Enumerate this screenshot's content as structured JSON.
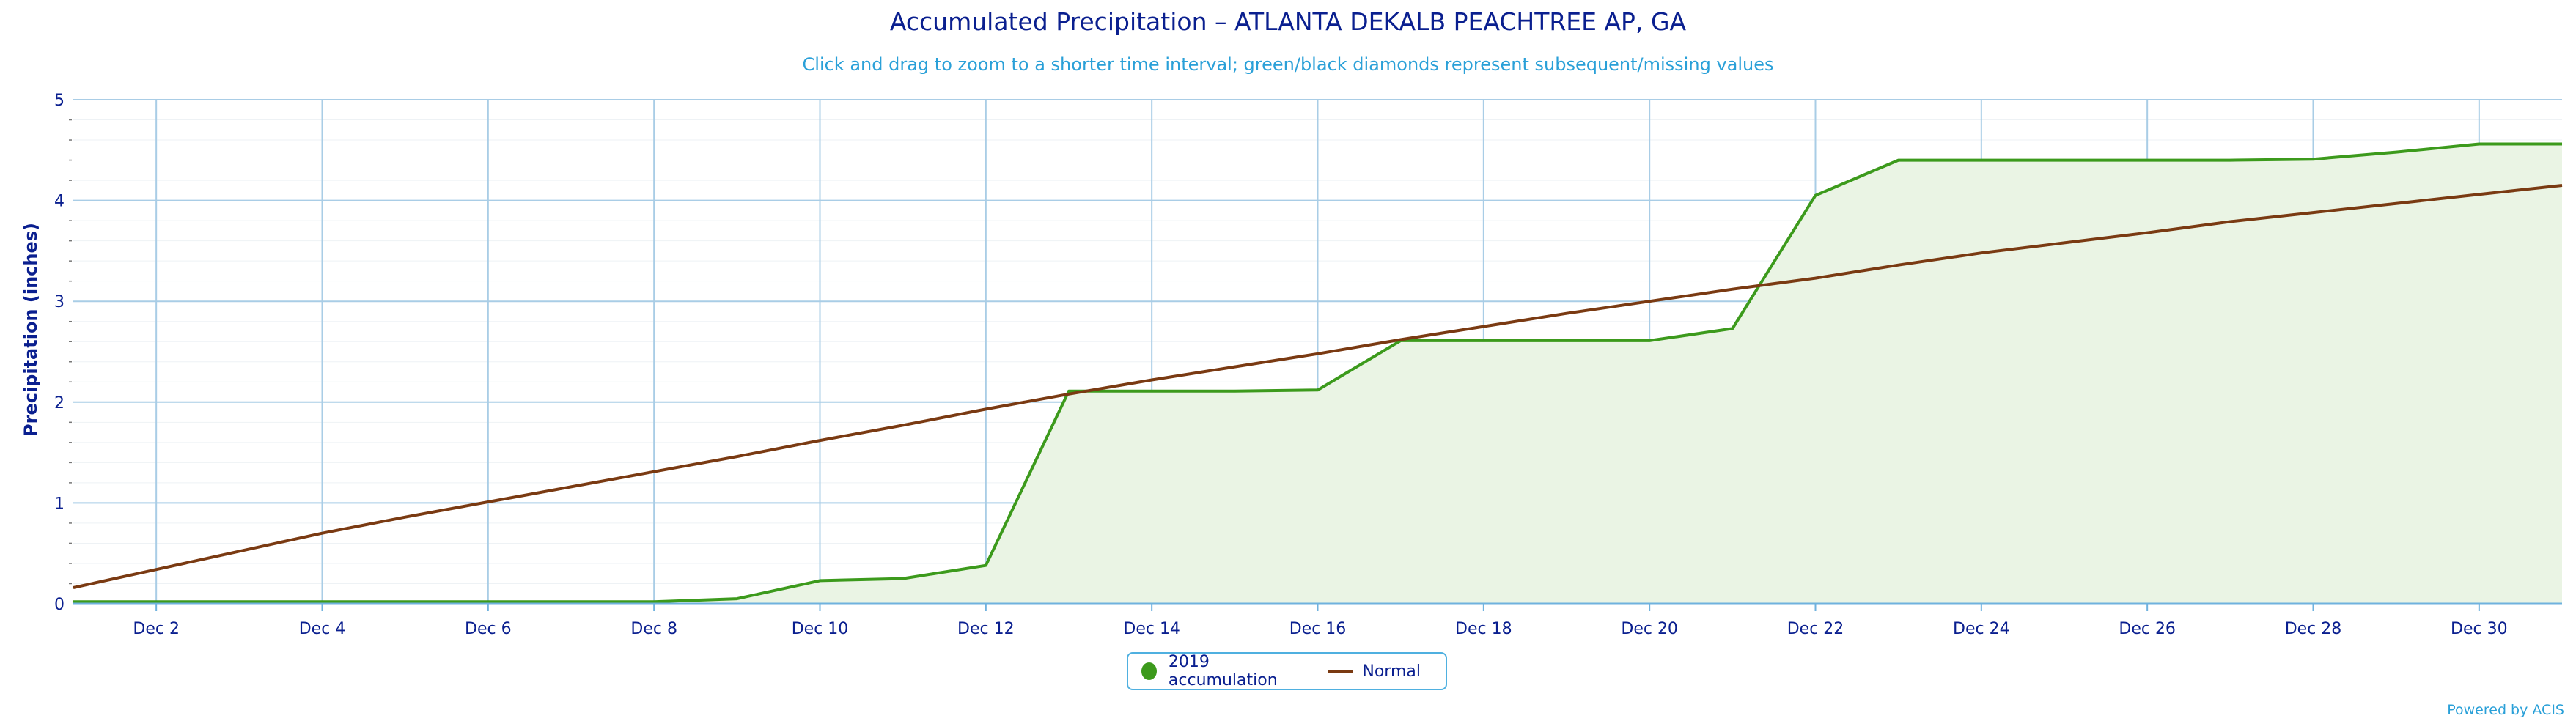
{
  "chart_data": {
    "type": "line",
    "title": "Accumulated Precipitation – ATLANTA DEKALB PEACHTREE AP, GA",
    "subtitle": "Click and drag to zoom to a shorter time interval; green/black diamonds represent subsequent/missing values",
    "ylabel": "Precipitation (inches)",
    "xlabel": "",
    "ylim": [
      0,
      5
    ],
    "xlim": [
      1,
      31
    ],
    "yticks": [
      "0",
      "1",
      "2",
      "3",
      "4",
      "5"
    ],
    "xtick_labels": [
      "Dec 2",
      "Dec 4",
      "Dec 6",
      "Dec 8",
      "Dec 10",
      "Dec 12",
      "Dec 14",
      "Dec 16",
      "Dec 18",
      "Dec 20",
      "Dec 22",
      "Dec 24",
      "Dec 26",
      "Dec 28",
      "Dec 30"
    ],
    "xtick_days": [
      2,
      4,
      6,
      8,
      10,
      12,
      14,
      16,
      18,
      20,
      22,
      24,
      26,
      28,
      30
    ],
    "grid": true,
    "legend_position": "bottom-center",
    "series": [
      {
        "name": "2019 accumulation",
        "color": "#3c9a1c",
        "fill": "#eaf4e4",
        "x": [
          1,
          2,
          3,
          4,
          5,
          6,
          7,
          8,
          9,
          10,
          11,
          12,
          13,
          14,
          15,
          16,
          17,
          18,
          19,
          20,
          21,
          22,
          23,
          24,
          25,
          26,
          27,
          28,
          29,
          30,
          31
        ],
        "values": [
          0.02,
          0.02,
          0.02,
          0.02,
          0.02,
          0.02,
          0.02,
          0.02,
          0.05,
          0.23,
          0.25,
          0.38,
          2.11,
          2.11,
          2.11,
          2.12,
          2.61,
          2.61,
          2.61,
          2.61,
          2.73,
          4.05,
          4.4,
          4.4,
          4.4,
          4.4,
          4.4,
          4.41,
          4.48,
          4.56,
          4.56
        ]
      },
      {
        "name": "Normal",
        "color": "#7a3a12",
        "x": [
          1,
          2,
          3,
          4,
          5,
          6,
          7,
          8,
          9,
          10,
          11,
          12,
          13,
          14,
          15,
          16,
          17,
          18,
          19,
          20,
          21,
          22,
          23,
          24,
          25,
          26,
          27,
          28,
          29,
          30,
          31
        ],
        "values": [
          0.16,
          0.34,
          0.52,
          0.7,
          0.86,
          1.01,
          1.16,
          1.31,
          1.46,
          1.62,
          1.77,
          1.93,
          2.08,
          2.22,
          2.35,
          2.48,
          2.62,
          2.75,
          2.88,
          3.0,
          3.12,
          3.23,
          3.36,
          3.48,
          3.58,
          3.68,
          3.79,
          3.88,
          3.97,
          4.06,
          4.15
        ]
      }
    ]
  },
  "legend": {
    "items": [
      "2019 accumulation",
      "Normal"
    ]
  },
  "credit": "Powered by ACIS"
}
